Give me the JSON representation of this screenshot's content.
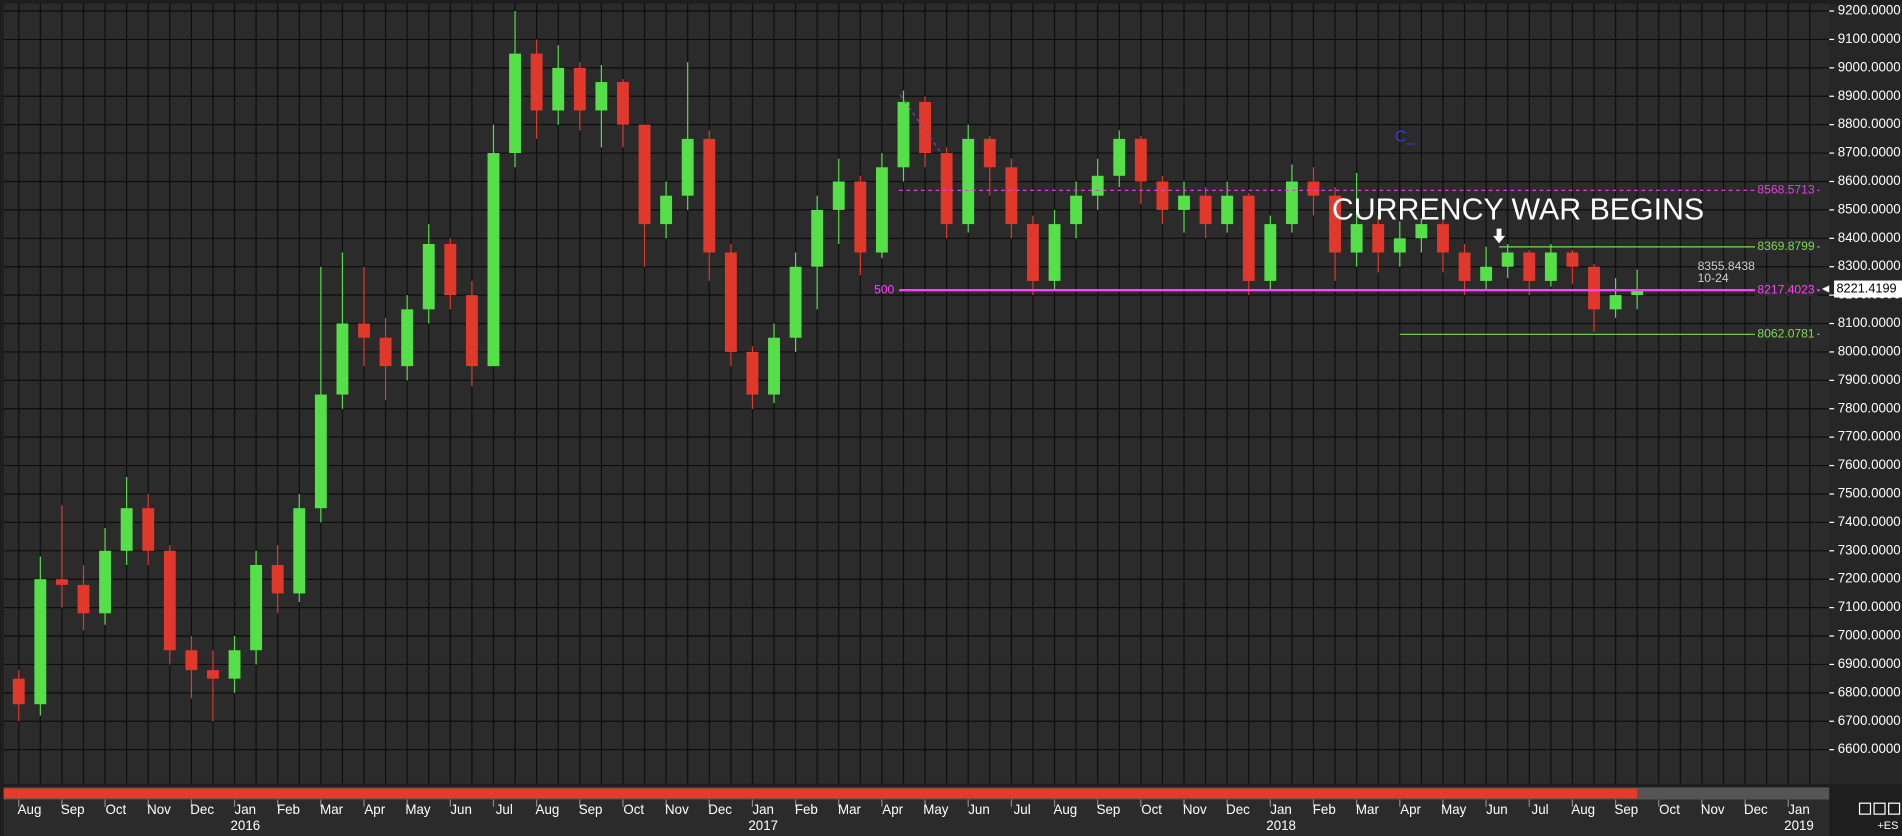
{
  "chart_data": {
    "type": "candlestick",
    "categories": [
      null,
      null,
      null,
      null,
      null,
      null,
      null,
      null,
      null,
      null,
      null,
      null,
      null,
      null,
      null,
      null,
      null,
      null,
      null,
      null,
      null,
      null,
      null,
      null,
      null,
      null,
      null,
      null,
      null,
      null,
      null,
      null,
      null,
      null,
      null,
      null,
      null,
      null,
      null,
      null,
      null,
      null,
      null,
      null,
      null,
      null,
      null,
      null,
      null,
      null,
      null,
      null,
      null,
      null,
      null,
      null,
      null,
      null,
      null,
      null,
      null,
      null,
      null,
      null,
      null,
      null,
      null,
      null,
      null,
      null,
      null,
      null,
      null,
      null,
      null,
      null
    ],
    "open": [
      6850,
      6760,
      7200,
      7180,
      7080,
      7300,
      7450,
      7300,
      6950,
      6880,
      6850,
      6950,
      7250,
      7150,
      7450,
      7850,
      8100,
      8050,
      7950,
      8150,
      8380,
      8200,
      7950,
      8700,
      9050,
      8850,
      9000,
      8850,
      8950,
      8800,
      8450,
      8550,
      8750,
      8350,
      8000,
      7850,
      8050,
      8300,
      8500,
      8600,
      8350,
      8650,
      8880,
      8700,
      8450,
      8750,
      8650,
      8450,
      8250,
      8450,
      8550,
      8620,
      8750,
      8600,
      8500,
      8550,
      8450,
      8550,
      8250,
      8450,
      8600,
      8550,
      8350,
      8450,
      8350,
      8400,
      8450,
      8350,
      8250,
      8300,
      8350,
      8250,
      8350,
      8300,
      8150,
      8200
    ],
    "high": [
      6880,
      7280,
      7460,
      7250,
      7380,
      7560,
      7500,
      7320,
      7000,
      6950,
      7000,
      7300,
      7320,
      7500,
      8300,
      8350,
      8300,
      8120,
      8200,
      8450,
      8400,
      8250,
      8800,
      9200,
      9100,
      9080,
      9020,
      9010,
      8960,
      8800,
      8600,
      9020,
      8780,
      8380,
      8020,
      8100,
      8350,
      8550,
      8680,
      8620,
      8700,
      8920,
      8900,
      8720,
      8800,
      8760,
      8680,
      8480,
      8500,
      8600,
      8680,
      8780,
      8760,
      8620,
      8600,
      8580,
      8600,
      8560,
      8480,
      8660,
      8650,
      8580,
      8630,
      8480,
      8460,
      8470,
      8470,
      8380,
      8370,
      8380,
      8360,
      8380,
      8360,
      8310,
      8260,
      8290
    ],
    "low": [
      6700,
      6720,
      7100,
      7020,
      7040,
      7250,
      7250,
      6900,
      6780,
      6700,
      6800,
      6900,
      7080,
      7120,
      7400,
      7800,
      7950,
      7830,
      7900,
      8100,
      8150,
      7880,
      7950,
      8650,
      8750,
      8800,
      8780,
      8720,
      8720,
      8300,
      8400,
      8500,
      8250,
      7950,
      7800,
      7820,
      8000,
      8150,
      8380,
      8270,
      8330,
      8600,
      8650,
      8400,
      8420,
      8550,
      8400,
      8200,
      8220,
      8400,
      8500,
      8580,
      8520,
      8450,
      8420,
      8400,
      8420,
      8200,
      8220,
      8420,
      8480,
      8250,
      8300,
      8280,
      8300,
      8350,
      8280,
      8200,
      8220,
      8260,
      8200,
      8230,
      8240,
      8070,
      8120,
      8150
    ],
    "close": [
      6760,
      7200,
      7180,
      7080,
      7300,
      7450,
      7300,
      6950,
      6880,
      6850,
      6950,
      7250,
      7150,
      7450,
      7850,
      8100,
      8050,
      7950,
      8150,
      8380,
      8200,
      7950,
      8700,
      9050,
      8850,
      9000,
      8850,
      8950,
      8800,
      8450,
      8550,
      8750,
      8350,
      8000,
      7850,
      8050,
      8300,
      8500,
      8600,
      8350,
      8650,
      8880,
      8700,
      8450,
      8750,
      8650,
      8450,
      8250,
      8450,
      8550,
      8620,
      8750,
      8600,
      8500,
      8550,
      8450,
      8550,
      8250,
      8450,
      8600,
      8550,
      8350,
      8450,
      8350,
      8400,
      8450,
      8350,
      8250,
      8300,
      8350,
      8250,
      8350,
      8300,
      8150,
      8200,
      8221.4199
    ],
    "up_color": "#55e04a",
    "down_color": "#e0392b",
    "xlim": [
      -0.7,
      83.9
    ],
    "ylim": [
      6480,
      9226
    ],
    "grid": true,
    "yticks": [
      {
        "value": 6600,
        "label": "6600.0000"
      },
      {
        "value": 6700,
        "label": "6700.0000"
      },
      {
        "value": 6800,
        "label": "6800.0000"
      },
      {
        "value": 6900,
        "label": "6900.0000"
      },
      {
        "value": 7000,
        "label": "7000.0000"
      },
      {
        "value": 7100,
        "label": "7100.0000"
      },
      {
        "value": 7200,
        "label": "7200.0000"
      },
      {
        "value": 7300,
        "label": "7300.0000"
      },
      {
        "value": 7400,
        "label": "7400.0000"
      },
      {
        "value": 7500,
        "label": "7500.0000"
      },
      {
        "value": 7600,
        "label": "7600.0000"
      },
      {
        "value": 7700,
        "label": "7700.0000"
      },
      {
        "value": 7800,
        "label": "7800.0000"
      },
      {
        "value": 7900,
        "label": "7900.0000"
      },
      {
        "value": 8000,
        "label": "8000.0000"
      },
      {
        "value": 8100,
        "label": "8100.0000"
      },
      {
        "value": 8200,
        "label": "8200.0000"
      },
      {
        "value": 8300,
        "label": "8300.0000"
      },
      {
        "value": 8400,
        "label": "8400.0000"
      },
      {
        "value": 8500,
        "label": "8500.0000"
      },
      {
        "value": 8600,
        "label": "8600.0000"
      },
      {
        "value": 8700,
        "label": "8700.0000"
      },
      {
        "value": 8800,
        "label": "8800.0000"
      },
      {
        "value": 8900,
        "label": "8900.0000"
      },
      {
        "value": 9000,
        "label": "9000.0000"
      },
      {
        "value": 9100,
        "label": "9100.0000"
      },
      {
        "value": 9200,
        "label": "9200.0000"
      }
    ],
    "xticks": [
      {
        "value": 0.5,
        "label": "Aug"
      },
      {
        "value": 2.5,
        "label": "Sep"
      },
      {
        "value": 4.5,
        "label": "Oct"
      },
      {
        "value": 6.5,
        "label": "Nov"
      },
      {
        "value": 8.5,
        "label": "Dec"
      },
      {
        "value": 10.5,
        "label": "Jan"
      },
      {
        "value": 12.5,
        "label": "Feb"
      },
      {
        "value": 14.5,
        "label": "Mar"
      },
      {
        "value": 16.5,
        "label": "Apr"
      },
      {
        "value": 18.5,
        "label": "May"
      },
      {
        "value": 20.5,
        "label": "Jun"
      },
      {
        "value": 22.5,
        "label": "Jul"
      },
      {
        "value": 24.5,
        "label": "Aug"
      },
      {
        "value": 26.5,
        "label": "Sep"
      },
      {
        "value": 28.5,
        "label": "Oct"
      },
      {
        "value": 30.5,
        "label": "Nov"
      },
      {
        "value": 32.5,
        "label": "Dec"
      },
      {
        "value": 34.5,
        "label": "Jan"
      },
      {
        "value": 36.5,
        "label": "Feb"
      },
      {
        "value": 38.5,
        "label": "Mar"
      },
      {
        "value": 40.5,
        "label": "Apr"
      },
      {
        "value": 42.5,
        "label": "May"
      },
      {
        "value": 44.5,
        "label": "Jun"
      },
      {
        "value": 46.5,
        "label": "Jul"
      },
      {
        "value": 48.5,
        "label": "Aug"
      },
      {
        "value": 50.5,
        "label": "Sep"
      },
      {
        "value": 52.5,
        "label": "Oct"
      },
      {
        "value": 54.5,
        "label": "Nov"
      },
      {
        "value": 56.5,
        "label": "Dec"
      },
      {
        "value": 58.5,
        "label": "Jan"
      },
      {
        "value": 60.5,
        "label": "Feb"
      },
      {
        "value": 62.5,
        "label": "Mar"
      },
      {
        "value": 64.5,
        "label": "Apr"
      },
      {
        "value": 66.5,
        "label": "May"
      },
      {
        "value": 68.5,
        "label": "Jun"
      },
      {
        "value": 70.5,
        "label": "Jul"
      },
      {
        "value": 72.5,
        "label": "Aug"
      },
      {
        "value": 74.5,
        "label": "Sep"
      },
      {
        "value": 76.5,
        "label": "Oct"
      },
      {
        "value": 78.5,
        "label": "Nov"
      },
      {
        "value": 80.5,
        "label": "Dec"
      },
      {
        "value": 82.5,
        "label": "Jan"
      }
    ],
    "year_ticks": [
      {
        "value": 10.5,
        "label": "2016"
      },
      {
        "value": 34.5,
        "label": "2017"
      },
      {
        "value": 58.5,
        "label": "2018"
      },
      {
        "value": 82.5,
        "label": "2019"
      }
    ],
    "levels": [
      {
        "value": 8568.5713,
        "start": 40.8,
        "color": "#e040e0",
        "style": "dashed"
      },
      {
        "value": 8369.8799,
        "start": 68.6,
        "color": "#7fd65a",
        "style": "solid"
      },
      {
        "value": 8217.4023,
        "start": 40.8,
        "color": "#ff40ff",
        "style": "solid",
        "tag": 500
      },
      {
        "value": 8062.0781,
        "start": 64.0,
        "color": "#7fd65a",
        "style": "solid"
      }
    ],
    "price_note": {
      "value": 8355.8438,
      "date": "10-24"
    },
    "last_price": 8221.4199,
    "annotation": {
      "text": "CURRENCY WAR BEGINS",
      "x": 68.6
    },
    "marker_text": "C_",
    "symbol_text": "+ES"
  }
}
